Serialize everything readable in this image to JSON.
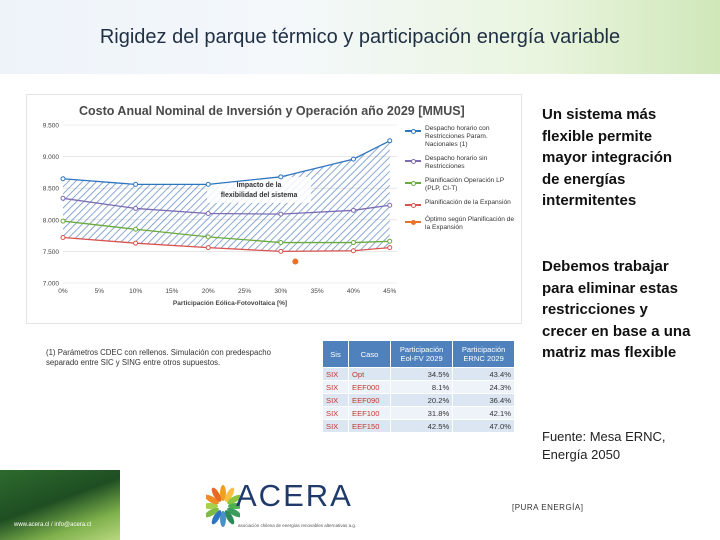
{
  "slide": {
    "title": "Rigidez del parque térmico y participación energía variable",
    "side_text_1": "Un sistema más flexible permite mayor integración de energías intermitentes",
    "side_text_2": "Debemos trabajar para eliminar estas restricciones y crecer en base a una matriz mas flexible",
    "source": "Fuente: Mesa ERNC, Energía 2050",
    "note": "(1) Parámetros CDEC con rellenos. Simulación con predespacho separado entre SIC y SING entre otros supuestos.",
    "footer_url": "www.acera.cl / info@acera.cl",
    "logo_word": "ACERA",
    "logo_tagline": "asociación chilena de energías renovables alternativas a.g.",
    "pura": "[PURA ENERGÍA]"
  },
  "colors": {
    "accent_blue": "#4f81bd",
    "series_1": "#2e75c0",
    "series_2": "#7d6cb2",
    "series_3": "#6aaa3c",
    "series_4": "#d9534f",
    "optimo": "#e8732a",
    "table_case_red": "#c0392b"
  },
  "chart_data": {
    "type": "line",
    "title": "Costo Anual Nominal de Inversión y Operación año 2029 [MMUS]",
    "xlabel": "Participación Eólica-Fotovoltaica [%]",
    "ylabel": "",
    "x": [
      0,
      5,
      10,
      15,
      20,
      25,
      30,
      35,
      40,
      45
    ],
    "x_tick_labels": [
      "0%",
      "5%",
      "10%",
      "15%",
      "20%",
      "25%",
      "30%",
      "35%",
      "40%",
      "45%"
    ],
    "y_tick_labels": [
      "7.000",
      "7.500",
      "8.000",
      "8.500",
      "9.000",
      "9.500"
    ],
    "ylim": [
      7000,
      9500
    ],
    "grid": true,
    "legend_position": "right",
    "annotation": "Impacto de la flexibilidad del sistema",
    "series": [
      {
        "name": "Despacho horario con Restricciones Param. Nacionales (1)",
        "x": [
          0,
          10,
          20,
          30,
          40,
          45
        ],
        "values": [
          8650,
          8560,
          8560,
          8680,
          8960,
          9250
        ]
      },
      {
        "name": "Despacho horario sin Restricciones",
        "x": [
          0,
          10,
          20,
          30,
          40,
          45
        ],
        "values": [
          8340,
          8180,
          8100,
          8090,
          8150,
          8230
        ]
      },
      {
        "name": "Planificación Operación LP (PLP, CI-T)",
        "x": [
          0,
          10,
          20,
          30,
          40,
          45
        ],
        "values": [
          7980,
          7850,
          7730,
          7640,
          7640,
          7660
        ]
      },
      {
        "name": "Planificación de la Expansión",
        "x": [
          0,
          10,
          20,
          30,
          40,
          45
        ],
        "values": [
          7720,
          7630,
          7560,
          7500,
          7510,
          7560
        ]
      },
      {
        "name": "Óptimo según Planificación de la Expansión",
        "x": [
          32
        ],
        "values": [
          7340
        ]
      }
    ]
  },
  "table": {
    "headers": [
      "Sis",
      "Caso",
      "Participación Eol-FV 2029",
      "Participación ERNC 2029"
    ],
    "rows": [
      [
        "SIX",
        "Opt",
        "34.5%",
        "43.4%"
      ],
      [
        "SIX",
        "EEF000",
        "8.1%",
        "24.3%"
      ],
      [
        "SIX",
        "EEF090",
        "20.2%",
        "36.4%"
      ],
      [
        "SIX",
        "EEF100",
        "31.8%",
        "42.1%"
      ],
      [
        "SIX",
        "EEF150",
        "42.5%",
        "47.0%"
      ]
    ]
  }
}
